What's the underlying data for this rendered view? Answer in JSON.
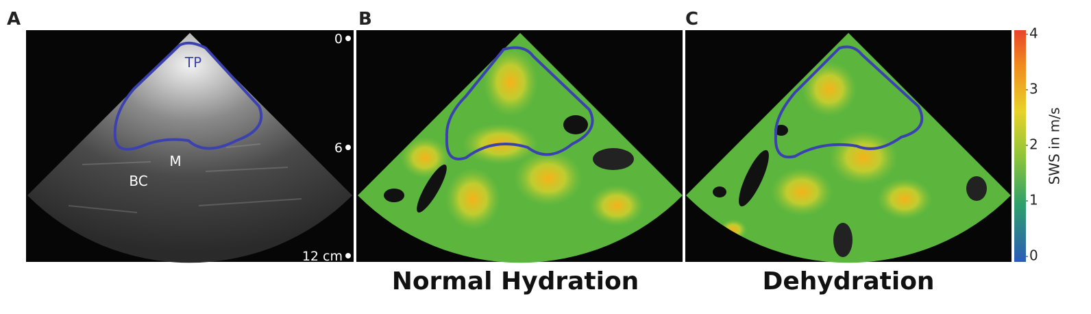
{
  "panels": [
    {
      "letter": "A",
      "annotations": [
        "TP",
        "M",
        "BC"
      ],
      "depth_labels": [
        "0",
        "6",
        "12 cm"
      ]
    },
    {
      "letter": "B",
      "caption": "Normal Hydration"
    },
    {
      "letter": "C",
      "caption": "Dehydration"
    }
  ],
  "colorbar": {
    "label": "SWS in m/s",
    "lim": [
      0,
      4
    ],
    "ticks": [
      0,
      1,
      2,
      3,
      4
    ]
  }
}
